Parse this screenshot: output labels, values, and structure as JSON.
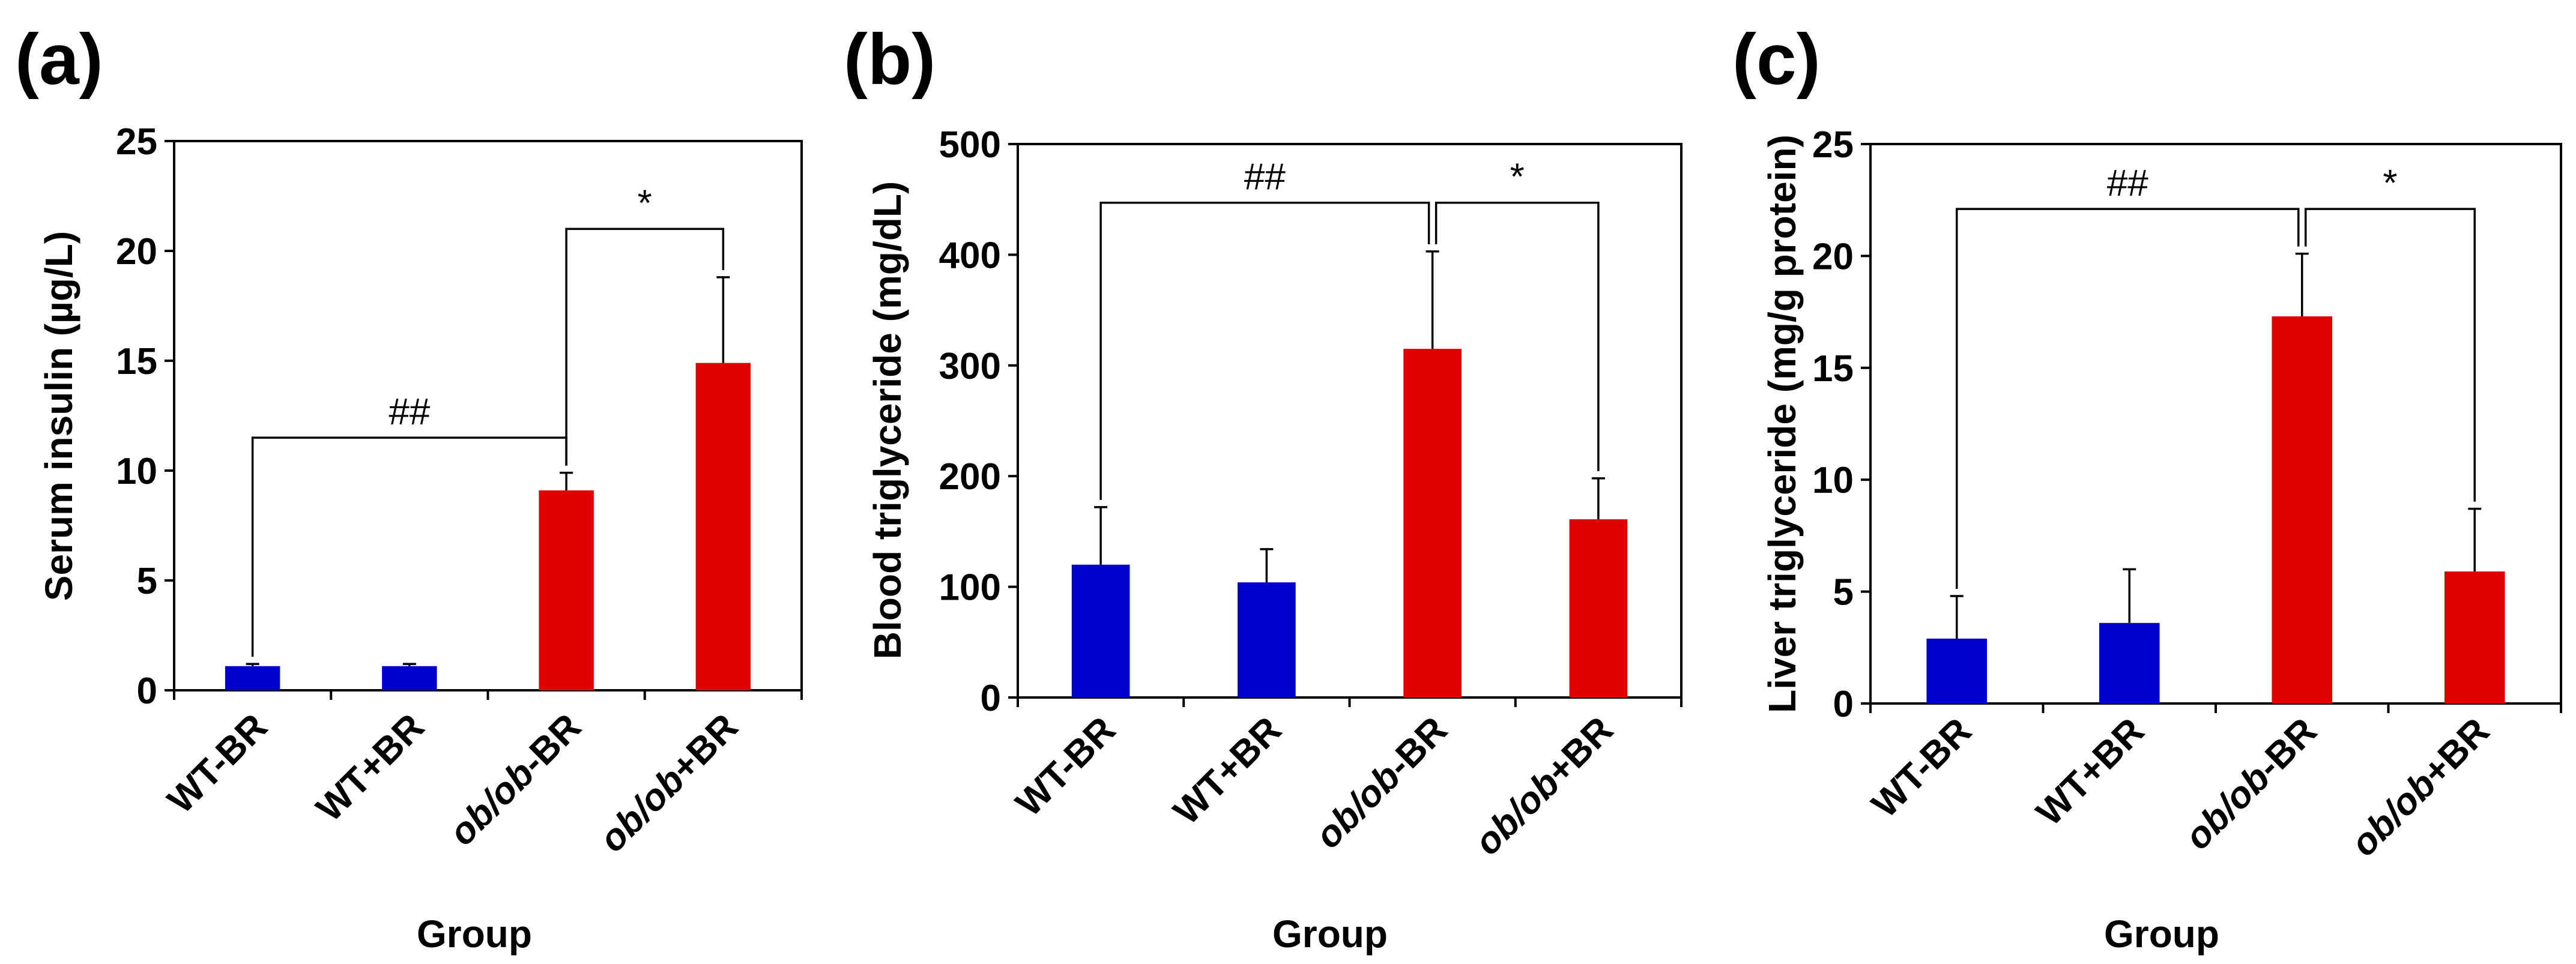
{
  "chart_data": [
    {
      "type": "bar",
      "panel_label": "(a)",
      "categories": [
        {
          "pre": "",
          "ital": "",
          "post": "WT-BR"
        },
        {
          "pre": "",
          "ital": "",
          "post": "WT+BR"
        },
        {
          "pre": "",
          "ital": "ob/ob",
          "post": "-BR"
        },
        {
          "pre": "",
          "ital": "ob/ob",
          "post": "+BR"
        }
      ],
      "values": [
        1.1,
        1.1,
        9.1,
        14.9
      ],
      "errors": [
        0.1,
        0.1,
        0.8,
        3.9
      ],
      "bar_colors": [
        "#0000CC",
        "#0000CC",
        "#E00000",
        "#E00000"
      ],
      "ylabel": "Serum insulin (µg/L)",
      "xlabel": "Group",
      "ylim": [
        0,
        25
      ],
      "yticks": [
        0,
        5,
        10,
        15,
        20,
        25
      ],
      "brackets": [
        {
          "from": 0,
          "to": 2,
          "label": "##",
          "level": 11.5
        },
        {
          "from": 2,
          "to": 3,
          "label": "*",
          "level": 21
        }
      ]
    },
    {
      "type": "bar",
      "panel_label": "(b)",
      "categories": [
        {
          "pre": "",
          "ital": "",
          "post": "WT-BR"
        },
        {
          "pre": "",
          "ital": "",
          "post": "WT+BR"
        },
        {
          "pre": "",
          "ital": "ob/ob",
          "post": "-BR"
        },
        {
          "pre": "",
          "ital": "ob/ob",
          "post": "+BR"
        }
      ],
      "values": [
        120,
        104,
        315,
        161
      ],
      "errors": [
        52,
        30,
        88,
        37
      ],
      "bar_colors": [
        "#0000CC",
        "#0000CC",
        "#E00000",
        "#E00000"
      ],
      "ylabel": "Blood triglyceride (mg/dL)",
      "xlabel": "Group",
      "ylim": [
        0,
        500
      ],
      "yticks": [
        0,
        100,
        200,
        300,
        400,
        500
      ],
      "brackets": [
        {
          "from": 0,
          "to": 2,
          "label": "##",
          "level": 447
        },
        {
          "from": 2,
          "to": 3,
          "label": "*",
          "level": 447
        }
      ]
    },
    {
      "type": "bar",
      "panel_label": "(c)",
      "categories": [
        {
          "pre": "",
          "ital": "",
          "post": "WT-BR"
        },
        {
          "pre": "",
          "ital": "",
          "post": "WT+BR"
        },
        {
          "pre": "",
          "ital": "ob/ob",
          "post": "-BR"
        },
        {
          "pre": "",
          "ital": "ob/ob",
          "post": "+BR"
        }
      ],
      "values": [
        2.9,
        3.6,
        17.3,
        5.9
      ],
      "errors": [
        1.9,
        2.4,
        2.8,
        2.8
      ],
      "bar_colors": [
        "#0000CC",
        "#0000CC",
        "#E00000",
        "#E00000"
      ],
      "ylabel": "Liver triglyceride (mg/g protein)",
      "xlabel": "Group",
      "ylim": [
        0,
        25
      ],
      "yticks": [
        0,
        5,
        10,
        15,
        20,
        25
      ],
      "brackets": [
        {
          "from": 0,
          "to": 2,
          "label": "##",
          "level": 22.1
        },
        {
          "from": 2,
          "to": 3,
          "label": "*",
          "level": 22.1
        }
      ]
    }
  ]
}
